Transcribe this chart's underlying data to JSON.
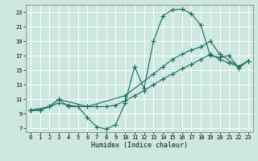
{
  "xlabel": "Humidex (Indice chaleur)",
  "bg_color": "#cce8e0",
  "grid_color": "#ffffff",
  "line_color": "#1a6b5a",
  "xlim": [
    -0.5,
    23.5
  ],
  "ylim": [
    6.5,
    24
  ],
  "xticks": [
    0,
    1,
    2,
    3,
    4,
    5,
    6,
    7,
    8,
    9,
    10,
    11,
    12,
    13,
    14,
    15,
    16,
    17,
    18,
    19,
    20,
    21,
    22,
    23
  ],
  "yticks": [
    7,
    9,
    11,
    13,
    15,
    17,
    19,
    21,
    23
  ],
  "line1_x": [
    0,
    1,
    2,
    3,
    4,
    5,
    6,
    7,
    8,
    9,
    10,
    11,
    12,
    13,
    14,
    15,
    16,
    17,
    18,
    19,
    20,
    21,
    22,
    23
  ],
  "line1_y": [
    9.5,
    9.5,
    10,
    11,
    10,
    10,
    8.5,
    7.2,
    6.9,
    7.5,
    10.5,
    15.5,
    12.5,
    19,
    22.5,
    23.3,
    23.4,
    22.8,
    21.2,
    17,
    16.8,
    17,
    15.3,
    16.3
  ],
  "line2_x": [
    0,
    2,
    3,
    6,
    10,
    13,
    14,
    15,
    16,
    17,
    18,
    19,
    20,
    22,
    23
  ],
  "line2_y": [
    9.5,
    10,
    11,
    10,
    11.5,
    14.5,
    15.5,
    16.5,
    17.2,
    17.8,
    18.2,
    19.0,
    17.2,
    15.5,
    16.3
  ],
  "line3_x": [
    0,
    1,
    2,
    3,
    4,
    5,
    6,
    7,
    8,
    9,
    10,
    11,
    12,
    13,
    14,
    15,
    16,
    17,
    18,
    19,
    20,
    21,
    22,
    23
  ],
  "line3_y": [
    9.5,
    9.5,
    10.0,
    10.5,
    10.2,
    10.0,
    10.0,
    10.0,
    10.0,
    10.2,
    10.8,
    11.5,
    12.2,
    13.0,
    13.8,
    14.5,
    15.2,
    15.8,
    16.5,
    17.2,
    16.5,
    16.0,
    15.5,
    16.3
  ]
}
